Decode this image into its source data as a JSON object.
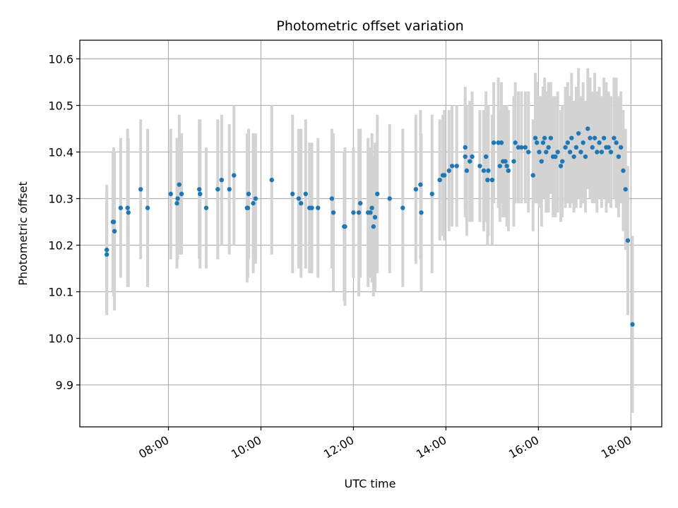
{
  "chart_data": {
    "type": "scatter",
    "title": "Photometric offset variation",
    "xlabel": "UTC time",
    "ylabel": "Photometric offset",
    "x_ticks": [
      "08:00",
      "10:00",
      "12:00",
      "14:00",
      "16:00",
      "18:00"
    ],
    "y_ticks": [
      "9.9",
      "10.0",
      "10.1",
      "10.2",
      "10.3",
      "10.4",
      "10.5",
      "10.6"
    ],
    "xlim": [
      "06:05",
      "18:40"
    ],
    "ylim": [
      9.81,
      10.64
    ],
    "grid": true,
    "colors": {
      "point": "#1f77b4",
      "errorbar": "#d3d3d3",
      "grid": "#b0b0b0"
    },
    "series": [
      {
        "points": [
          [
            "06:40",
            10.19,
            0.14
          ],
          [
            "06:40",
            10.18,
            0.13
          ],
          [
            "06:48",
            10.25,
            0.15
          ],
          [
            "06:49",
            10.25,
            0.16
          ],
          [
            "06:50",
            10.23,
            0.17
          ],
          [
            "06:58",
            10.28,
            0.15
          ],
          [
            "07:07",
            10.28,
            0.17
          ],
          [
            "07:08",
            10.27,
            0.16
          ],
          [
            "07:24",
            10.32,
            0.15
          ],
          [
            "07:33",
            10.28,
            0.17
          ],
          [
            "08:03",
            10.31,
            0.14
          ],
          [
            "08:11",
            10.29,
            0.14
          ],
          [
            "08:12",
            10.3,
            0.13
          ],
          [
            "08:14",
            10.33,
            0.15
          ],
          [
            "08:17",
            10.31,
            0.13
          ],
          [
            "08:40",
            10.32,
            0.15
          ],
          [
            "08:41",
            10.31,
            0.16
          ],
          [
            "08:49",
            10.28,
            0.13
          ],
          [
            "09:04",
            10.32,
            0.15
          ],
          [
            "09:09",
            10.34,
            0.14
          ],
          [
            "09:19",
            10.32,
            0.14
          ],
          [
            "09:25",
            10.35,
            0.15
          ],
          [
            "09:42",
            10.28,
            0.16
          ],
          [
            "09:43",
            10.28,
            0.15
          ],
          [
            "09:44",
            10.31,
            0.14
          ],
          [
            "09:50",
            10.29,
            0.15
          ],
          [
            "09:53",
            10.3,
            0.14
          ],
          [
            "10:14",
            10.34,
            0.16
          ],
          [
            "10:41",
            10.31,
            0.17
          ],
          [
            "10:49",
            10.3,
            0.15
          ],
          [
            "10:52",
            10.29,
            0.16
          ],
          [
            "10:58",
            10.31,
            0.16
          ],
          [
            "11:03",
            10.28,
            0.14
          ],
          [
            "11:06",
            10.28,
            0.14
          ],
          [
            "11:14",
            10.28,
            0.15
          ],
          [
            "11:32",
            10.3,
            0.15
          ],
          [
            "11:34",
            10.27,
            0.17
          ],
          [
            "11:48",
            10.24,
            0.16
          ],
          [
            "11:49",
            10.24,
            0.17
          ],
          [
            "12:00",
            10.27,
            0.14
          ],
          [
            "12:07",
            10.27,
            0.18
          ],
          [
            "12:09",
            10.29,
            0.16
          ],
          [
            "12:19",
            10.27,
            0.16
          ],
          [
            "12:22",
            10.27,
            0.14
          ],
          [
            "12:24",
            10.28,
            0.16
          ],
          [
            "12:26",
            10.24,
            0.15
          ],
          [
            "12:28",
            10.26,
            0.16
          ],
          [
            "12:31",
            10.31,
            0.17
          ],
          [
            "12:47",
            10.3,
            0.16
          ],
          [
            "13:04",
            10.28,
            0.17
          ],
          [
            "13:21",
            10.32,
            0.16
          ],
          [
            "13:27",
            10.33,
            0.16
          ],
          [
            "13:28",
            10.27,
            0.17
          ],
          [
            "13:42",
            10.31,
            0.17
          ],
          [
            "13:52",
            10.34,
            0.13
          ],
          [
            "13:56",
            10.35,
            0.13
          ],
          [
            "13:58",
            10.35,
            0.14
          ],
          [
            "14:04",
            10.36,
            0.13
          ],
          [
            "14:08",
            10.37,
            0.13
          ],
          [
            "14:14",
            10.37,
            0.13
          ],
          [
            "14:25",
            10.41,
            0.13
          ],
          [
            "14:25",
            10.39,
            0.13
          ],
          [
            "14:27",
            10.36,
            0.14
          ],
          [
            "14:31",
            10.38,
            0.13
          ],
          [
            "14:34",
            10.39,
            0.14
          ],
          [
            "14:44",
            10.37,
            0.12
          ],
          [
            "14:49",
            10.36,
            0.13
          ],
          [
            "14:52",
            10.39,
            0.14
          ],
          [
            "14:54",
            10.34,
            0.14
          ],
          [
            "14:55",
            10.36,
            0.14
          ],
          [
            "15:00",
            10.34,
            0.14
          ],
          [
            "15:02",
            10.42,
            0.13
          ],
          [
            "15:08",
            10.42,
            0.14
          ],
          [
            "15:10",
            10.37,
            0.12
          ],
          [
            "15:12",
            10.42,
            0.13
          ],
          [
            "15:14",
            10.38,
            0.12
          ],
          [
            "15:17",
            10.38,
            0.12
          ],
          [
            "15:19",
            10.37,
            0.13
          ],
          [
            "15:21",
            10.36,
            0.13
          ],
          [
            "15:28",
            10.38,
            0.14
          ],
          [
            "15:30",
            10.42,
            0.13
          ],
          [
            "15:34",
            10.41,
            0.12
          ],
          [
            "15:38",
            10.41,
            0.12
          ],
          [
            "15:43",
            10.41,
            0.12
          ],
          [
            "15:47",
            10.4,
            0.13
          ],
          [
            "15:53",
            10.35,
            0.12
          ],
          [
            "15:56",
            10.43,
            0.14
          ],
          [
            "15:58",
            10.42,
            0.13
          ],
          [
            "16:01",
            10.4,
            0.12
          ],
          [
            "16:04",
            10.38,
            0.14
          ],
          [
            "16:06",
            10.42,
            0.12
          ],
          [
            "16:08",
            10.43,
            0.13
          ],
          [
            "16:10",
            10.4,
            0.13
          ],
          [
            "16:13",
            10.41,
            0.14
          ],
          [
            "16:16",
            10.43,
            0.12
          ],
          [
            "16:19",
            10.39,
            0.13
          ],
          [
            "16:22",
            10.39,
            0.13
          ],
          [
            "16:25",
            10.4,
            0.13
          ],
          [
            "16:29",
            10.37,
            0.12
          ],
          [
            "16:31",
            10.38,
            0.12
          ],
          [
            "16:35",
            10.41,
            0.13
          ],
          [
            "16:38",
            10.42,
            0.13
          ],
          [
            "16:41",
            10.4,
            0.12
          ],
          [
            "16:43",
            10.43,
            0.14
          ],
          [
            "16:46",
            10.39,
            0.12
          ],
          [
            "16:49",
            10.41,
            0.13
          ],
          [
            "16:52",
            10.44,
            0.14
          ],
          [
            "16:55",
            10.4,
            0.12
          ],
          [
            "16:58",
            10.42,
            0.13
          ],
          [
            "17:01",
            10.39,
            0.12
          ],
          [
            "17:04",
            10.45,
            0.13
          ],
          [
            "17:07",
            10.43,
            0.13
          ],
          [
            "17:10",
            10.41,
            0.12
          ],
          [
            "17:13",
            10.43,
            0.14
          ],
          [
            "17:16",
            10.4,
            0.13
          ],
          [
            "17:19",
            10.42,
            0.12
          ],
          [
            "17:22",
            10.4,
            0.12
          ],
          [
            "17:25",
            10.43,
            0.13
          ],
          [
            "17:28",
            10.41,
            0.14
          ],
          [
            "17:31",
            10.41,
            0.12
          ],
          [
            "17:34",
            10.4,
            0.12
          ],
          [
            "17:38",
            10.43,
            0.13
          ],
          [
            "17:41",
            10.42,
            0.14
          ],
          [
            "17:44",
            10.39,
            0.13
          ],
          [
            "17:47",
            10.41,
            0.12
          ],
          [
            "17:50",
            10.36,
            0.13
          ],
          [
            "17:53",
            10.32,
            0.13
          ],
          [
            "17:56",
            10.21,
            0.16
          ],
          [
            "18:02",
            10.03,
            0.19
          ]
        ]
      }
    ]
  }
}
